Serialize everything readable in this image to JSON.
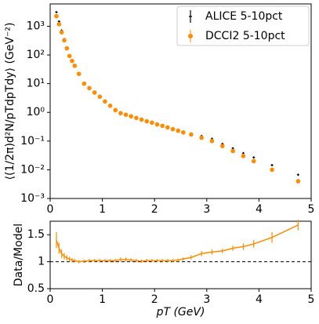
{
  "chart_data": [
    {
      "type": "scatter",
      "ylabel": "⟨(1/2π)d²N/pTdpTdy⟩ (GeV⁻²)",
      "x": [
        0.12,
        0.17,
        0.22,
        0.27,
        0.32,
        0.37,
        0.42,
        0.47,
        0.55,
        0.65,
        0.75,
        0.85,
        0.95,
        1.05,
        1.15,
        1.25,
        1.35,
        1.45,
        1.55,
        1.65,
        1.75,
        1.85,
        1.95,
        2.05,
        2.15,
        2.25,
        2.35,
        2.45,
        2.55,
        2.7,
        2.9,
        3.1,
        3.3,
        3.5,
        3.7,
        3.9,
        4.25,
        4.75
      ],
      "series": [
        {
          "name": "ALICE 5-10pct",
          "color": "#000000",
          "values": [
            3100,
            1470,
            710,
            356,
            182,
            97,
            64,
            43,
            22,
            10.1,
            7.1,
            5.0,
            3.6,
            2.4,
            1.7,
            1.2,
            0.98,
            0.86,
            0.75,
            0.65,
            0.57,
            0.5,
            0.45,
            0.39,
            0.35,
            0.31,
            0.27,
            0.24,
            0.21,
            0.18,
            0.15,
            0.12,
            0.08,
            0.056,
            0.038,
            0.027,
            0.0145,
            0.0067
          ]
        },
        {
          "name": "DCCI2 5-10pct",
          "color": "#ff8c00",
          "values": [
            2239,
            1175,
            617,
            324,
            170,
            92,
            62,
            42,
            22,
            10,
            7.0,
            4.9,
            3.5,
            2.4,
            1.7,
            1.2,
            0.94,
            0.83,
            0.73,
            0.64,
            0.56,
            0.49,
            0.44,
            0.38,
            0.34,
            0.3,
            0.26,
            0.23,
            0.2,
            0.17,
            0.13,
            0.1,
            0.067,
            0.045,
            0.03,
            0.02,
            0.01,
            0.004
          ]
        }
      ],
      "xlim": [
        0,
        5
      ],
      "xticks": [
        0,
        1,
        2,
        3,
        4,
        5
      ],
      "ylim": [
        0.001,
        6000
      ],
      "log_y": true,
      "yticks": [
        {
          "value": 0.001,
          "label": "10⁻³"
        },
        {
          "value": 0.01,
          "label": "10⁻²"
        },
        {
          "value": 0.1,
          "label": "10⁻¹"
        },
        {
          "value": 1,
          "label": "10⁰"
        },
        {
          "value": 10,
          "label": "10¹"
        },
        {
          "value": 100,
          "label": "10²"
        },
        {
          "value": 1000,
          "label": "10³"
        }
      ],
      "legend": "upper right"
    },
    {
      "type": "line",
      "xlabel": "pT (GeV)",
      "ylabel": "Data/Model",
      "x": [
        0.12,
        0.17,
        0.22,
        0.27,
        0.32,
        0.37,
        0.42,
        0.47,
        0.55,
        0.65,
        0.75,
        0.85,
        0.95,
        1.05,
        1.15,
        1.25,
        1.35,
        1.45,
        1.55,
        1.65,
        1.75,
        1.85,
        1.95,
        2.05,
        2.15,
        2.25,
        2.35,
        2.45,
        2.55,
        2.7,
        2.9,
        3.1,
        3.3,
        3.5,
        3.7,
        3.9,
        4.25,
        4.75
      ],
      "color": "#ff8c00",
      "values": [
        1.4,
        1.25,
        1.15,
        1.1,
        1.07,
        1.05,
        1.03,
        1.02,
        1.0,
        1.01,
        1.02,
        1.02,
        1.02,
        1.02,
        1.02,
        1.02,
        1.04,
        1.04,
        1.03,
        1.02,
        1.01,
        1.02,
        1.02,
        1.02,
        1.02,
        1.02,
        1.02,
        1.03,
        1.05,
        1.08,
        1.15,
        1.18,
        1.2,
        1.25,
        1.28,
        1.33,
        1.45,
        1.68
      ],
      "errors": [
        0.15,
        0.1,
        0.08,
        0.06,
        0.05,
        0.04,
        0.04,
        0.03,
        0.03,
        0.03,
        0.03,
        0.03,
        0.03,
        0.03,
        0.03,
        0.03,
        0.04,
        0.04,
        0.03,
        0.03,
        0.03,
        0.03,
        0.03,
        0.03,
        0.03,
        0.03,
        0.03,
        0.03,
        0.03,
        0.04,
        0.05,
        0.05,
        0.04,
        0.05,
        0.06,
        0.07,
        0.1,
        0.1
      ],
      "hline": 1,
      "xlim": [
        0,
        5
      ],
      "xticks": [
        0,
        1,
        2,
        3,
        4,
        5
      ],
      "ylim": [
        0.5,
        1.75
      ],
      "yticks": [
        0.5,
        1.0,
        1.5
      ]
    }
  ]
}
